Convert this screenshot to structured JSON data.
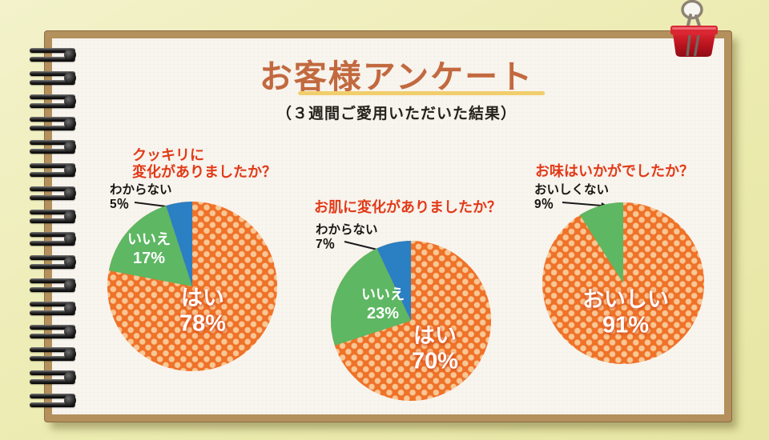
{
  "header": {
    "title": "お客様アンケート",
    "subtitle": "（３週間ご愛用いただいた結果）"
  },
  "charts": [
    {
      "question": "クッキリに変化がありましたか？",
      "question_lines": [
        "クッキリに",
        "変化がありましたか？"
      ],
      "slices": [
        {
          "label": "はい",
          "pct": "78%",
          "value": 78,
          "color": "#ef7228"
        },
        {
          "label": "いいえ",
          "pct": "17%",
          "value": 17,
          "color": "#5eb763"
        },
        {
          "label": "わからない",
          "pct": "5％",
          "value": 5,
          "color": "#2b7fc3"
        }
      ]
    },
    {
      "question": "お肌に変化がありましたか？",
      "slices": [
        {
          "label": "はい",
          "pct": "70%",
          "value": 70,
          "color": "#ef7228"
        },
        {
          "label": "いいえ",
          "pct": "23%",
          "value": 23,
          "color": "#5eb763"
        },
        {
          "label": "わからない",
          "pct": "7％",
          "value": 7,
          "color": "#2b7fc3"
        }
      ]
    },
    {
      "question": "お味はいかがでしたか？",
      "slices": [
        {
          "label": "おいしい",
          "pct": "91%",
          "value": 91,
          "color": "#ef7228"
        },
        {
          "label": "おいしくない",
          "pct": "9％",
          "value": 9,
          "color": "#5eb763"
        }
      ]
    }
  ],
  "chart_data": [
    {
      "type": "pie",
      "title": "クッキリに変化がありましたか？",
      "labels": [
        "はい",
        "いいえ",
        "わからない"
      ],
      "values": [
        78,
        17,
        5
      ],
      "colors": [
        "#ef7228",
        "#5eb763",
        "#2b7fc3"
      ],
      "start_angle": "12-oclock",
      "direction": "clockwise"
    },
    {
      "type": "pie",
      "title": "お肌に変化がありましたか？",
      "labels": [
        "はい",
        "いいえ",
        "わからない"
      ],
      "values": [
        70,
        23,
        7
      ],
      "colors": [
        "#ef7228",
        "#5eb763",
        "#2b7fc3"
      ],
      "start_angle": "12-oclock",
      "direction": "clockwise"
    },
    {
      "type": "pie",
      "title": "お味はいかがでしたか？",
      "labels": [
        "おいしい",
        "おいしくない"
      ],
      "values": [
        91,
        9
      ],
      "colors": [
        "#ef7228",
        "#5eb763"
      ],
      "start_angle": "12-oclock",
      "direction": "clockwise"
    }
  ],
  "colors": {
    "background": "#ecebb0",
    "paper": "#f8f4ee",
    "frame": "#b3905c",
    "title_text": "#c2693f",
    "title_underline": "#f1ce6c",
    "question_text": "#e23a18",
    "pie_orange": "#ef7228",
    "pie_orange_dot": "#f8c795",
    "pie_green": "#5eb763",
    "pie_blue": "#2b7fc3",
    "binder_clip": "#c9161f",
    "spiral_ring": "#1a1a1a"
  },
  "decorations": {
    "spiral_ring_count": 16
  }
}
